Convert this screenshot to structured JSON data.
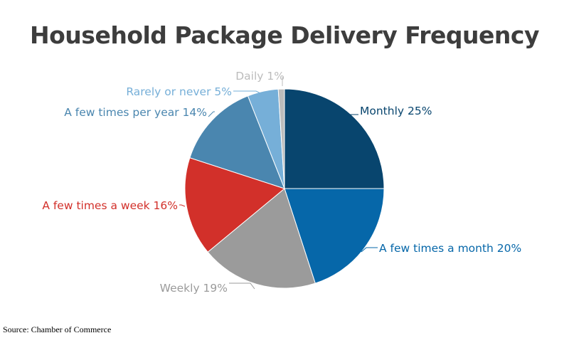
{
  "chart_data": {
    "type": "pie",
    "title": "Household Package Delivery Frequency",
    "source": "Source: Chamber of Commerce",
    "start_angle_deg": 0,
    "direction": "clockwise",
    "slices": [
      {
        "label": "Monthly 25%",
        "value": 25,
        "color": "#08456e",
        "label_color": "#08456e"
      },
      {
        "label": "A few times a month 20%",
        "value": 20,
        "color": "#0667a9",
        "label_color": "#0667a9"
      },
      {
        "label": "Weekly 19%",
        "value": 19,
        "color": "#9b9b9b",
        "label_color": "#9b9b9b"
      },
      {
        "label": "A few times a week 16%",
        "value": 16,
        "color": "#d2302a",
        "label_color": "#d2302a"
      },
      {
        "label": "A few times per year 14%",
        "value": 14,
        "color": "#4a86af",
        "label_color": "#4a86af"
      },
      {
        "label": "Rarely or never 5%",
        "value": 5,
        "color": "#76afd8",
        "label_color": "#76afd8"
      },
      {
        "label": "Daily 1%",
        "value": 1,
        "color": "#bcbcbc",
        "label_color": "#bcbcbc"
      }
    ]
  }
}
